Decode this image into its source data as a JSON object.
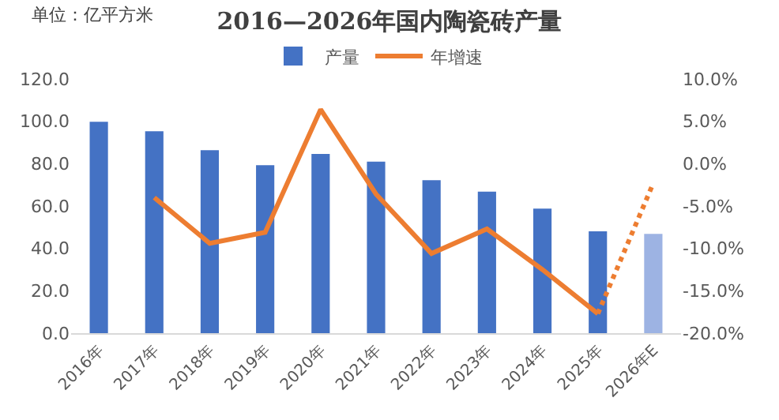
{
  "chart_data": {
    "type": "bar",
    "title": "2016—2026年国内陶瓷砖产量",
    "annotations": [
      "单位：亿平方米"
    ],
    "categories": [
      "2016年",
      "2017年",
      "2018年",
      "2019年",
      "2020年",
      "2021年",
      "2022年",
      "2023年",
      "2024年",
      "2025年",
      "2026年E"
    ],
    "series": [
      {
        "name": "产量",
        "colors": [
          "#4472c4",
          "#4472c4",
          "#4472c4",
          "#4472c4",
          "#4472c4",
          "#4472c4",
          "#4472c4",
          "#4472c4",
          "#4472c4",
          "#4472c4",
          "#9db3e3"
        ],
        "values": [
          99.8,
          95.3,
          86.4,
          79.3,
          84.6,
          81.0,
          72.2,
          66.8,
          58.8,
          48.1,
          46.9
        ]
      },
      {
        "name": "年增速",
        "type": "line",
        "axis": "y2",
        "color": "#ed7d31",
        "line_style": "solid",
        "values": [
          null,
          -4.0,
          -9.4,
          -8.1,
          6.4,
          -3.6,
          -10.6,
          -7.7,
          -12.5,
          -17.7,
          null
        ]
      },
      {
        "type": "line",
        "axis": "y2",
        "color": "#ed7d31",
        "line_style": "dotted",
        "values": [
          null,
          null,
          null,
          null,
          null,
          null,
          null,
          null,
          null,
          -17.7,
          -2.3
        ]
      }
    ],
    "ylim": [
      0,
      120
    ],
    "yticks": [
      {
        "value": 0,
        "label": "0.0"
      },
      {
        "value": 20,
        "label": "20.0"
      },
      {
        "value": 40,
        "label": "40.0"
      },
      {
        "value": 60,
        "label": "60.0"
      },
      {
        "value": 80,
        "label": "80.0"
      },
      {
        "value": 100,
        "label": "100.0"
      },
      {
        "value": 120,
        "label": "120.0"
      }
    ],
    "y2lim": [
      -20,
      10
    ],
    "y2ticks": [
      {
        "value": -20,
        "label": "-20.0%"
      },
      {
        "value": -15,
        "label": "-15.0%"
      },
      {
        "value": -10,
        "label": "-10.0%"
      },
      {
        "value": -5,
        "label": "-5.0%"
      },
      {
        "value": 0,
        "label": "0.0%"
      },
      {
        "value": 5,
        "label": "5.0%"
      },
      {
        "value": 10,
        "label": "10.0%"
      }
    ],
    "legend": "top",
    "grid": false
  }
}
